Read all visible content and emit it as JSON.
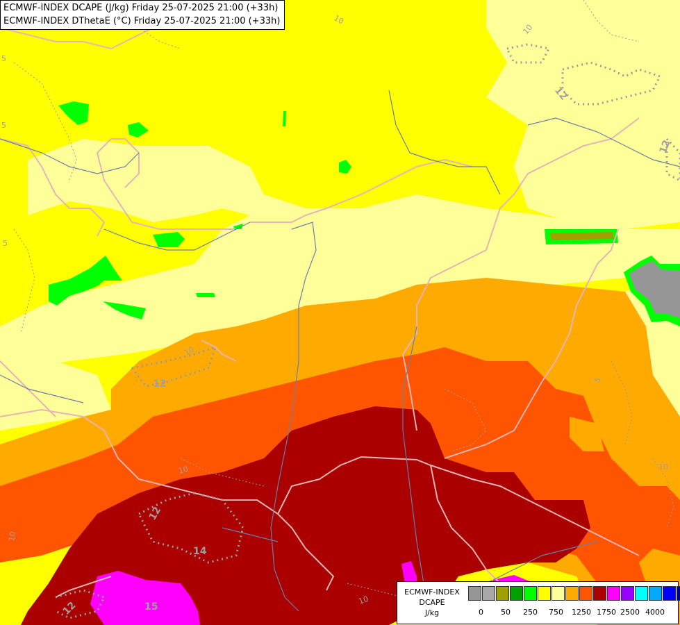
{
  "titles": [
    "ECMWF-INDEX DCAPE (J/kg) Friday 25-07-2025 21:00 (+33h)",
    "ECMWF-INDEX DThetaE (°C) Friday 25-07-2025 21:00 (+33h)"
  ],
  "legend": {
    "name_line1": "ECMWF-INDEX",
    "name_line2": "DCAPE",
    "unit": "J/kg",
    "colors": [
      "#969696",
      "#a8a8a8",
      "#a0a000",
      "#00a000",
      "#00ff00",
      "#ffff00",
      "#ffff99",
      "#ffaa00",
      "#ff5500",
      "#aa0000",
      "#ff00ff",
      "#9900ff",
      "#00ffff",
      "#00aaff",
      "#0000ff",
      "#000099"
    ],
    "tick_labels": [
      "0",
      "50",
      "250",
      "750",
      "1250",
      "1750",
      "2500",
      "4000"
    ]
  },
  "fill_colors": {
    "yellow": "#ffff00",
    "light_yellow": "#ffff99",
    "orange": "#ffaa00",
    "dark_orange": "#ff5500",
    "dark_red": "#aa0000",
    "magenta": "#ff00ff",
    "green": "#00ff00",
    "dark_green": "#00a000",
    "gray": "#969696",
    "olive": "#a0a000"
  },
  "contour_labels": [
    "10",
    "10",
    "12",
    "5",
    "5",
    "5",
    "12",
    "10",
    "12",
    "5",
    "10",
    "10",
    "12",
    "14",
    "12",
    "15",
    "10",
    "10",
    "10"
  ]
}
